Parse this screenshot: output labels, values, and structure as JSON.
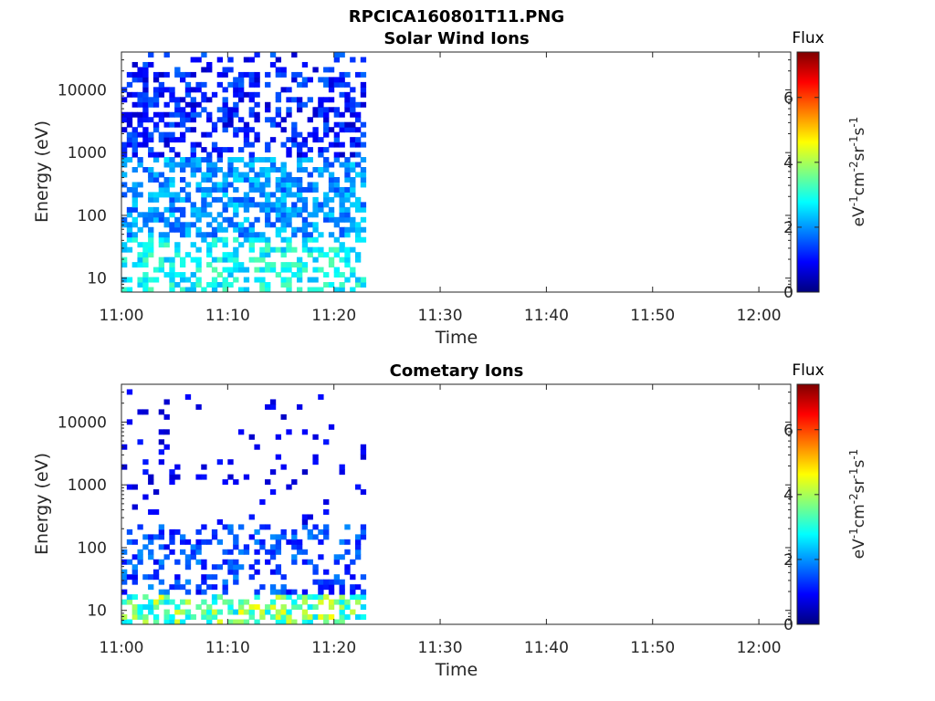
{
  "figure": {
    "title": "RPCICA160801T11.PNG"
  },
  "chart_data": [
    {
      "type": "heatmap",
      "title": "Solar Wind Ions",
      "xlabel": "Time",
      "ylabel": "Energy (eV)",
      "x_ticks": [
        "11:00",
        "11:10",
        "11:20",
        "11:30",
        "11:40",
        "11:50",
        "12:00"
      ],
      "x_range_minutes": [
        0,
        63
      ],
      "y_scale": "log",
      "y_ticks": [
        10,
        100,
        1000,
        10000
      ],
      "y_range": [
        6,
        40000
      ],
      "data_extent_minutes": [
        0,
        23
      ],
      "colorbar": {
        "label": "Flux",
        "unit": "eV-1cm-2sr-1s-1",
        "ticks": [
          0,
          2,
          4,
          6
        ],
        "range": [
          0,
          7.4
        ],
        "colormap": "jet"
      },
      "grid": false
    },
    {
      "type": "heatmap",
      "title": "Cometary Ions",
      "xlabel": "Time",
      "ylabel": "Energy (eV)",
      "x_ticks": [
        "11:00",
        "11:10",
        "11:20",
        "11:30",
        "11:40",
        "11:50",
        "12:00"
      ],
      "x_range_minutes": [
        0,
        63
      ],
      "y_scale": "log",
      "y_ticks": [
        10,
        100,
        1000,
        10000
      ],
      "y_range": [
        6,
        40000
      ],
      "data_extent_minutes": [
        0,
        23
      ],
      "colorbar": {
        "label": "Flux",
        "unit": "eV-1cm-2sr-1s-1",
        "ticks": [
          0,
          2,
          4,
          6
        ],
        "range": [
          0,
          7.4
        ],
        "colormap": "jet"
      },
      "grid": false
    }
  ]
}
